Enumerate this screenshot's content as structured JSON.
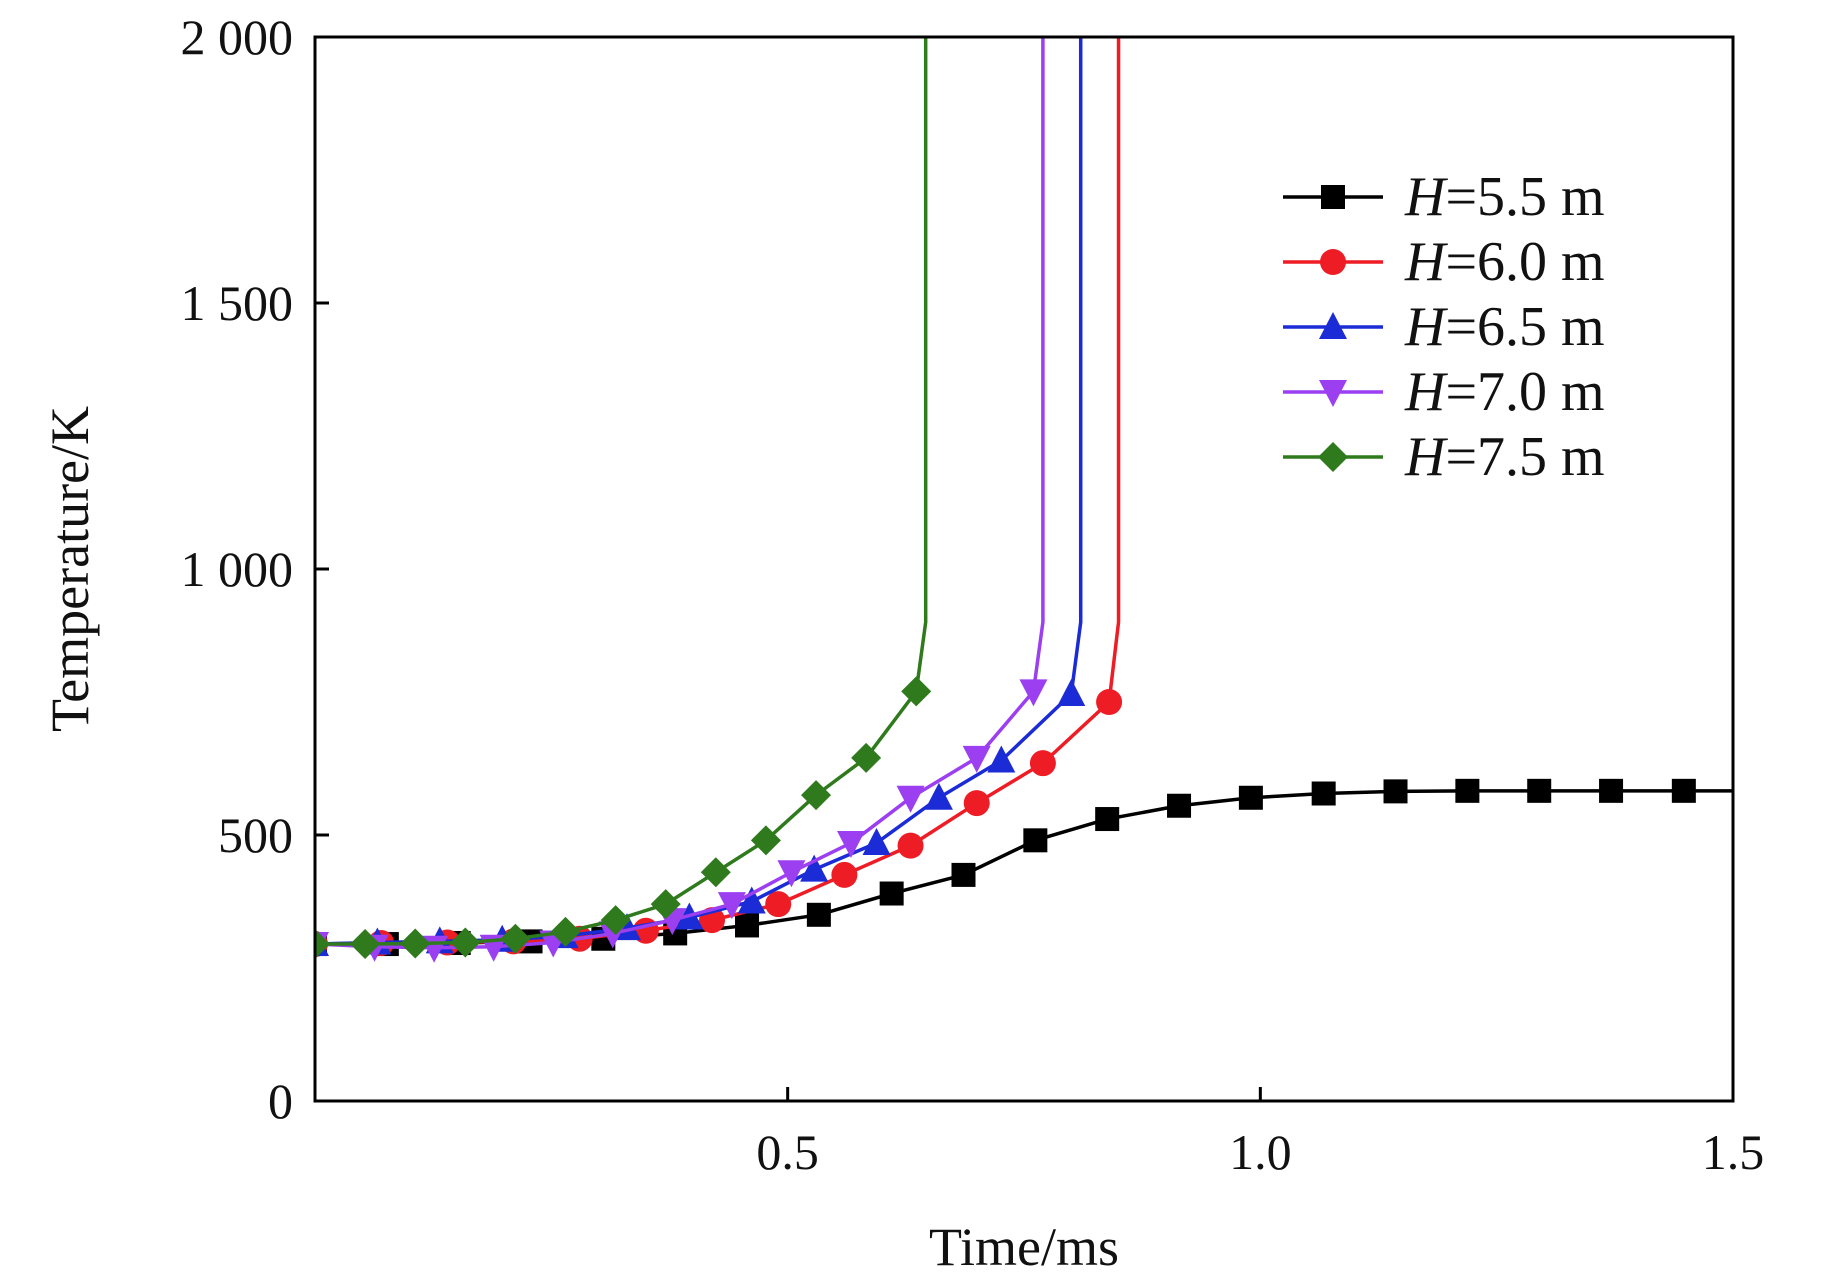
{
  "chart_data": {
    "type": "line",
    "title": "",
    "xlabel": "Time/ms",
    "ylabel": "Temperature/K",
    "xlim": [
      0,
      1.5
    ],
    "ylim": [
      0,
      2000
    ],
    "x_ticks": [
      0.5,
      1.0,
      1.5
    ],
    "x_tick_labels": [
      "0.5",
      "1.0",
      "1.5"
    ],
    "y_ticks": [
      0,
      500,
      1000,
      1500,
      2000
    ],
    "y_tick_labels": [
      "0",
      "500",
      "1 000",
      "1 500",
      "2 000"
    ],
    "grid": false,
    "legend_position": "top-right",
    "series": [
      {
        "name": "H=5.5 m",
        "legend_italic": "H",
        "legend_rest": "=5.5 m",
        "color": "#000000",
        "marker": "square",
        "x": [
          0.0,
          0.076,
          0.152,
          0.228,
          0.305,
          0.381,
          0.457,
          0.533,
          0.61,
          0.686,
          0.762,
          0.838,
          0.914,
          0.99,
          1.067,
          1.143,
          1.219,
          1.295,
          1.371,
          1.448,
          1.5
        ],
        "y": [
          295,
          295,
          297,
          300,
          305,
          315,
          330,
          350,
          390,
          425,
          490,
          530,
          555,
          570,
          578,
          582,
          583,
          583,
          583,
          583,
          583
        ]
      },
      {
        "name": "H=6.0 m",
        "legend_italic": "H",
        "legend_rest": "=6.0 m",
        "color": "#ee1c25",
        "marker": "circle",
        "x": [
          0.0,
          0.07,
          0.14,
          0.21,
          0.28,
          0.35,
          0.42,
          0.49,
          0.56,
          0.63,
          0.7,
          0.77,
          0.84,
          0.85,
          0.85
        ],
        "y": [
          295,
          297,
          298,
          300,
          305,
          320,
          340,
          370,
          425,
          480,
          560,
          635,
          750,
          900,
          2000
        ]
      },
      {
        "name": "H=6.5 m",
        "legend_italic": "H",
        "legend_rest": "=6.5 m",
        "color": "#1b2bd6",
        "marker": "triangle-up",
        "x": [
          0.0,
          0.066,
          0.132,
          0.198,
          0.264,
          0.33,
          0.396,
          0.462,
          0.528,
          0.594,
          0.66,
          0.726,
          0.8,
          0.81,
          0.81
        ],
        "y": [
          295,
          298,
          300,
          303,
          310,
          325,
          345,
          375,
          435,
          485,
          570,
          640,
          765,
          900,
          2000
        ]
      },
      {
        "name": "H=7.0 m",
        "legend_italic": "H",
        "legend_rest": "=7.0 m",
        "color": "#9b3ff0",
        "marker": "triangle-down",
        "x": [
          0.0,
          0.063,
          0.126,
          0.189,
          0.252,
          0.315,
          0.378,
          0.441,
          0.504,
          0.567,
          0.63,
          0.7,
          0.76,
          0.77,
          0.77
        ],
        "y": [
          295,
          290,
          288,
          290,
          298,
          315,
          340,
          370,
          430,
          485,
          570,
          645,
          770,
          900,
          2000
        ]
      },
      {
        "name": "H=7.5 m",
        "legend_italic": "H",
        "legend_rest": "=7.5 m",
        "color": "#2f7a1c",
        "marker": "diamond",
        "x": [
          0.0,
          0.053,
          0.106,
          0.159,
          0.212,
          0.265,
          0.318,
          0.371,
          0.424,
          0.477,
          0.53,
          0.583,
          0.636,
          0.646,
          0.646
        ],
        "y": [
          295,
          295,
          296,
          298,
          305,
          318,
          340,
          370,
          430,
          490,
          575,
          645,
          770,
          900,
          2000
        ]
      }
    ]
  }
}
